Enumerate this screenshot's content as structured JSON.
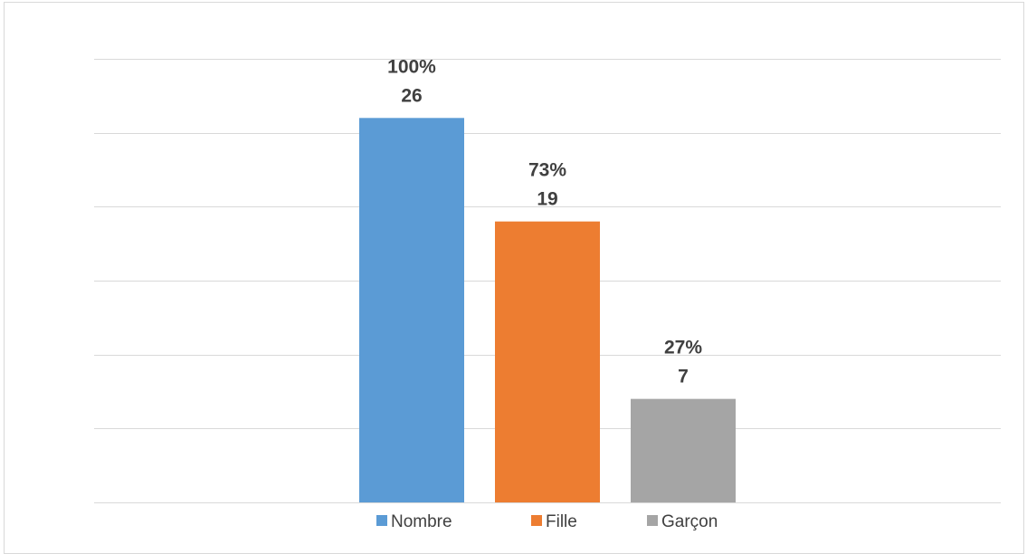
{
  "chart_data": {
    "type": "bar",
    "series": [
      {
        "name": "Nombre",
        "value": 26,
        "percent_label": "100%",
        "value_label": "26",
        "color": "#5B9BD5"
      },
      {
        "name": "Fille",
        "value": 19,
        "percent_label": "73%",
        "value_label": "19",
        "color": "#ED7D31"
      },
      {
        "name": "Garçon",
        "value": 7,
        "percent_label": "27%",
        "value_label": "7",
        "color": "#A5A5A5"
      }
    ],
    "ylim": [
      0,
      35
    ],
    "grid": true,
    "legend_position": "bottom",
    "gridline_color": "#d9d9d9"
  }
}
